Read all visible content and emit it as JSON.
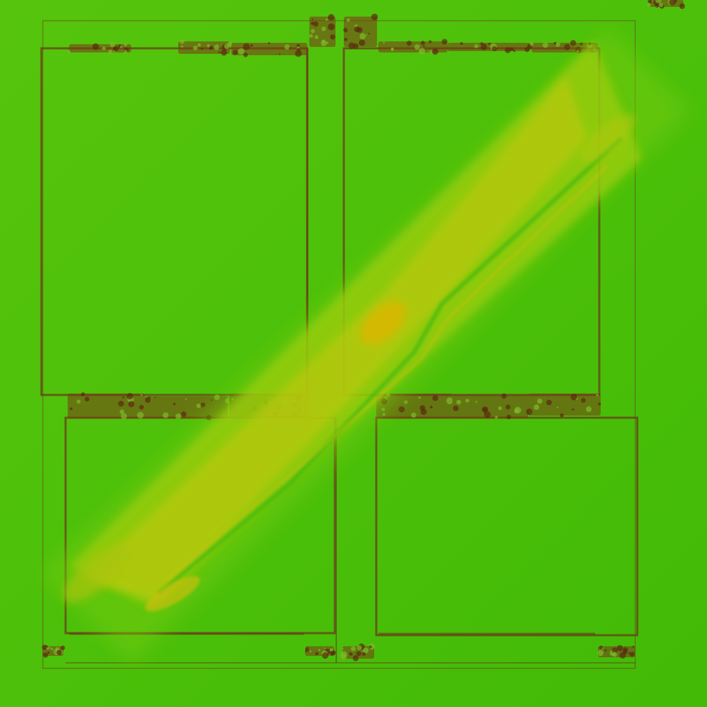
{
  "texture": {
    "palette": {
      "background": "#4cc00a",
      "background_dark": "#40b806",
      "background_light": "#5cc80c",
      "frame_line": "#6a3a1a",
      "frame_stain": "#7a3a18",
      "streak_green": "#7ccc10",
      "streak_yellow": "#c8c80a",
      "streak_gold": "#d8b800"
    },
    "panels": [
      {
        "name": "panel-top-left"
      },
      {
        "name": "panel-top-right"
      },
      {
        "name": "panel-bottom-left"
      },
      {
        "name": "panel-bottom-right"
      }
    ],
    "diagonal_streak": {
      "name": "diagonal-streak"
    }
  }
}
